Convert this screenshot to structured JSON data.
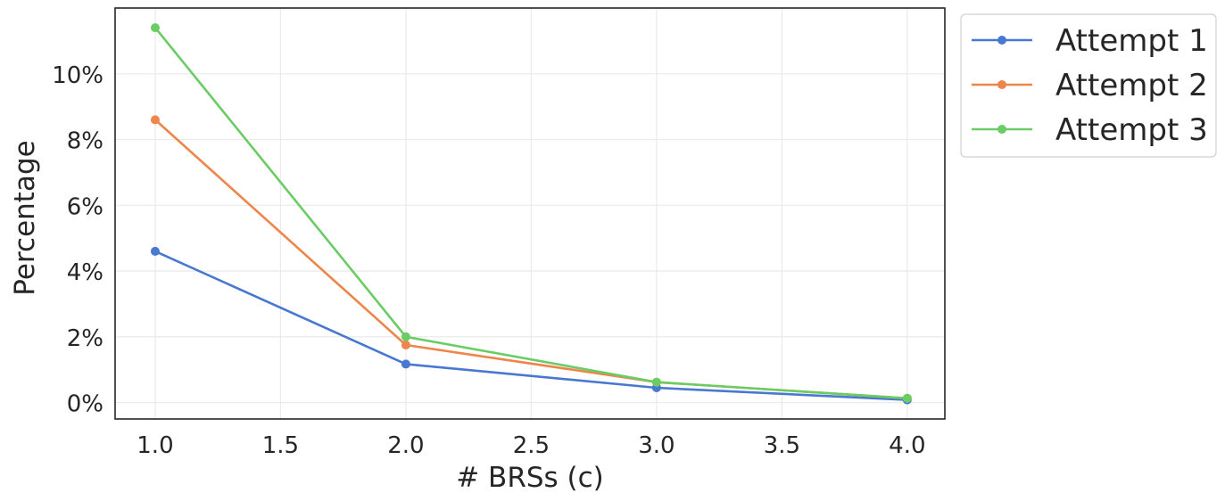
{
  "chart_data": {
    "type": "line",
    "title": "",
    "xlabel": "# BRSs (c)",
    "ylabel": "Percentage",
    "xlim": [
      0.84,
      4.15
    ],
    "ylim": [
      -0.5,
      12.0
    ],
    "xticks": [
      1.0,
      1.5,
      2.0,
      2.5,
      3.0,
      3.5,
      4.0
    ],
    "xtick_labels": [
      "1.0",
      "1.5",
      "2.0",
      "2.5",
      "3.0",
      "3.5",
      "4.0"
    ],
    "yticks": [
      0,
      2,
      4,
      6,
      8,
      10
    ],
    "ytick_labels": [
      "0%",
      "2%",
      "4%",
      "6%",
      "8%",
      "10%"
    ],
    "grid": true,
    "legend_position": "outside-top-right",
    "x": [
      1.0,
      2.0,
      3.0,
      4.0
    ],
    "series": [
      {
        "name": "Attempt 1",
        "values": [
          4.6,
          1.17,
          0.45,
          0.08
        ],
        "color": "#4878d0"
      },
      {
        "name": "Attempt 2",
        "values": [
          8.6,
          1.75,
          0.62,
          0.13
        ],
        "color": "#ee854a"
      },
      {
        "name": "Attempt 3",
        "values": [
          11.4,
          2.0,
          0.62,
          0.13
        ],
        "color": "#6acc64"
      }
    ]
  }
}
